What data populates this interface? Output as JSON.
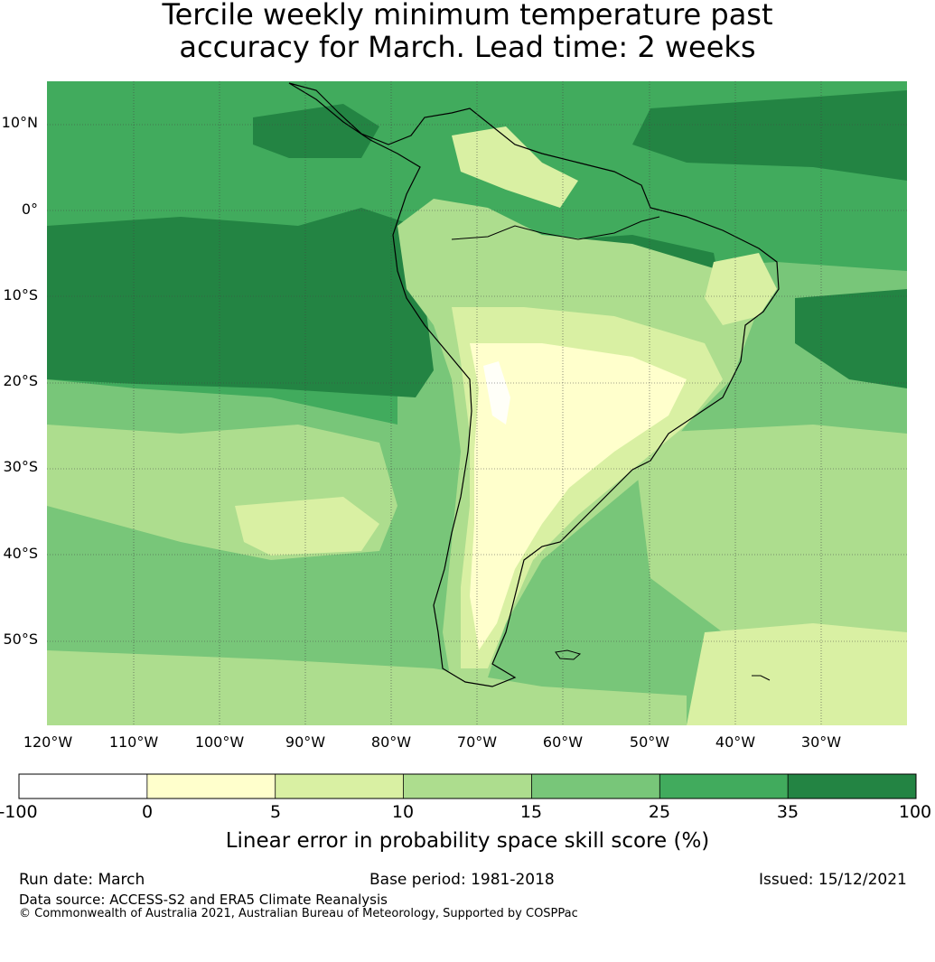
{
  "title_line1": "Tercile weekly minimum temperature past",
  "title_line2": "accuracy for March. Lead time: 2 weeks",
  "lat_labels": [
    "10°N",
    "0°",
    "10°S",
    "20°S",
    "30°S",
    "40°S",
    "50°S"
  ],
  "lon_labels": [
    "120°W",
    "110°W",
    "100°W",
    "90°W",
    "80°W",
    "70°W",
    "60°W",
    "50°W",
    "40°W",
    "30°W"
  ],
  "colorbar": {
    "ticks": [
      "-100",
      "0",
      "5",
      "10",
      "15",
      "25",
      "35",
      "100"
    ],
    "colors": [
      "#ffffff",
      "#ffffcc",
      "#d9f0a3",
      "#addd8e",
      "#78c679",
      "#41ab5d",
      "#238443"
    ],
    "label": "Linear error in probability space skill score (%)"
  },
  "footer": {
    "run_date": "Run date: March",
    "base_period": "Base period: 1981-2018",
    "issued": "Issued: 15/12/2021",
    "data_source": "Data source: ACCESS-S2 and ERA5 Climate Reanalysis",
    "copyright": "© Commonwealth of Australia 2021, Australian Bureau of Meteorology, Supported by COSPPac"
  }
}
